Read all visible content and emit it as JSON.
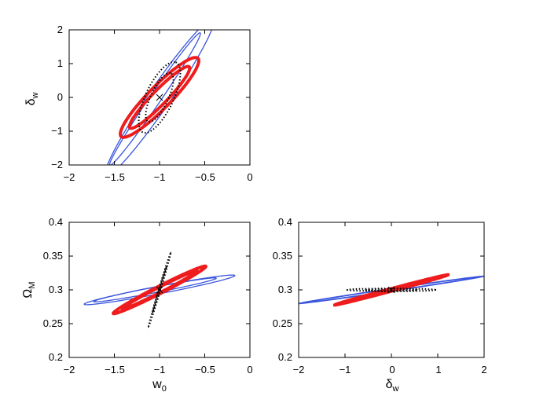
{
  "chart_data": [
    {
      "type": "line",
      "panel": "top-left",
      "xlabel": "",
      "ylabel_main": "δ",
      "ylabel_sub": "w",
      "xlim": [
        -2,
        0
      ],
      "ylim": [
        -2,
        2
      ],
      "xticks": [
        -2,
        -1.5,
        -1,
        -0.5,
        0
      ],
      "xtick_labels": [
        "−2",
        "−1.5",
        "−1",
        "−0.5",
        "0"
      ],
      "yticks": [
        -2,
        -1,
        0,
        1,
        2
      ],
      "ytick_labels": [
        "−2",
        "−1",
        "0",
        "1",
        "2"
      ],
      "grid": false,
      "center": [
        -1,
        0
      ],
      "ellipses": [
        {
          "style": "blue",
          "cx": -1.0,
          "cy": 0.0,
          "a": 1.3,
          "b": 0.13,
          "angle": 1.1
        },
        {
          "style": "blue",
          "cx": -1.05,
          "cy": -0.05,
          "a": 1.1,
          "b": 0.065,
          "angle": 1.1
        },
        {
          "style": "red",
          "cx": -1.0,
          "cy": 0.0,
          "a": 0.72,
          "b": 0.14,
          "angle": 0.95
        },
        {
          "style": "red",
          "cx": -1.0,
          "cy": 0.0,
          "a": 0.56,
          "b": 0.09,
          "angle": 0.95
        },
        {
          "style": "dotted",
          "cx": -1.0,
          "cy": 0.0,
          "a": 0.55,
          "b": 0.16,
          "angle": 1.25
        },
        {
          "style": "dotted",
          "cx": -1.0,
          "cy": 0.0,
          "a": 0.38,
          "b": 0.1,
          "angle": 1.25
        }
      ]
    },
    {
      "type": "line",
      "panel": "bottom-left",
      "xlabel_main": "w",
      "xlabel_sub": "0",
      "ylabel_main": "Ω",
      "ylabel_sub": "M",
      "xlim": [
        -2,
        0
      ],
      "ylim": [
        0.2,
        0.4
      ],
      "xticks": [
        -2,
        -1.5,
        -1,
        -0.5,
        0
      ],
      "xtick_labels": [
        "−2",
        "−1.5",
        "−1",
        "−0.5",
        "0"
      ],
      "yticks": [
        0.2,
        0.25,
        0.3,
        0.35,
        0.4
      ],
      "ytick_labels": [
        "0.2",
        "0.25",
        "0.3",
        "0.35",
        "0.4"
      ],
      "grid": false,
      "center": [
        -1,
        0.3
      ],
      "ellipses": [
        {
          "style": "blue",
          "cx": -1.0,
          "cy": 0.3,
          "a": 0.86,
          "b": 0.055,
          "angle": 0.25
        },
        {
          "style": "blue",
          "cx": -1.05,
          "cy": 0.3,
          "a": 0.7,
          "b": 0.04,
          "angle": 0.25
        },
        {
          "style": "red",
          "cx": -1.0,
          "cy": 0.3,
          "a": 0.62,
          "b": 0.05,
          "angle": 0.6
        },
        {
          "style": "red",
          "cx": -1.0,
          "cy": 0.3,
          "a": 0.5,
          "b": 0.035,
          "angle": 0.6
        },
        {
          "style": "dotted",
          "cx": -1.0,
          "cy": 0.3,
          "a": 0.55,
          "b": 0.01,
          "angle": 1.35
        },
        {
          "style": "dotted",
          "cx": -1.0,
          "cy": 0.3,
          "a": 0.35,
          "b": 0.007,
          "angle": 1.35
        }
      ]
    },
    {
      "type": "line",
      "panel": "bottom-right",
      "xlabel_main": "δ",
      "xlabel_sub": "w",
      "ylabel_main": "",
      "ylabel_sub": "",
      "xlim": [
        -2,
        2
      ],
      "ylim": [
        0.2,
        0.4
      ],
      "xticks": [
        -2,
        -1,
        0,
        1,
        2
      ],
      "xtick_labels": [
        "−2",
        "−1",
        "0",
        "1",
        "2"
      ],
      "yticks": [
        0.2,
        0.25,
        0.3,
        0.35,
        0.4
      ],
      "ytick_labels": [
        "0.2",
        "0.25",
        "0.3",
        "0.35",
        "0.4"
      ],
      "grid": false,
      "center": [
        0,
        0.3
      ],
      "ellipses": [
        {
          "style": "blue",
          "cx": 0.0,
          "cy": 0.3,
          "a": 2.05,
          "b": 0.04,
          "angle": 0.2
        },
        {
          "style": "blue",
          "cx": 0.0,
          "cy": 0.3,
          "a": 1.9,
          "b": 0.028,
          "angle": 0.2
        },
        {
          "style": "red",
          "cx": 0.0,
          "cy": 0.3,
          "a": 1.3,
          "b": 0.038,
          "angle": 0.35
        },
        {
          "style": "red",
          "cx": 0.0,
          "cy": 0.3,
          "a": 1.05,
          "b": 0.027,
          "angle": 0.35
        },
        {
          "style": "dotted",
          "cx": 0.0,
          "cy": 0.3,
          "a": 0.95,
          "b": 0.04,
          "angle": 0.0
        },
        {
          "style": "dotted",
          "cx": 0.0,
          "cy": 0.3,
          "a": 0.55,
          "b": 0.03,
          "angle": 0.0
        }
      ]
    }
  ],
  "colors": {
    "blue": "#3a55dd",
    "red": "#ee1c1c",
    "dotted": "#000000",
    "axis": "#000000"
  }
}
